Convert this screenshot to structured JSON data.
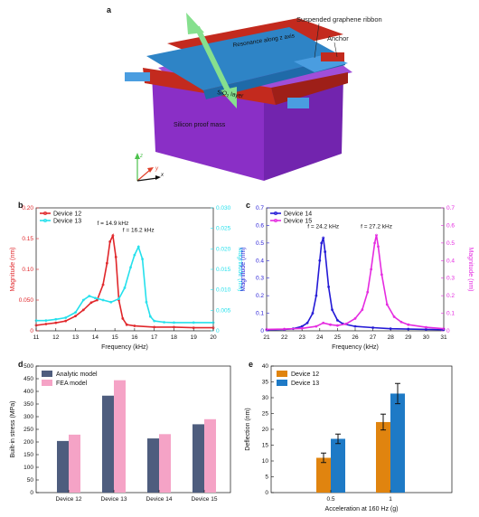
{
  "figure": {
    "panels": [
      "a",
      "b",
      "c",
      "d",
      "e"
    ]
  },
  "panel_a": {
    "labels": {
      "ribbon": "Suspended graphene ribbon",
      "anchor": "Anchor",
      "resonance": "Resonance along z axis",
      "sio2": "SiO",
      "sio2_sub": "2",
      "sio2_suffix": " layer",
      "mass": "Silicon proof mass"
    },
    "axes": {
      "z": "z",
      "y": "y",
      "x": "x"
    },
    "colors": {
      "red": "#c8201b",
      "blue": "#2e84c6",
      "purple": "#8b2fc9",
      "green": "#86e08e"
    }
  },
  "chart_data": [
    {
      "panel": "b",
      "type": "line",
      "xlabel": "Frequency (kHz)",
      "ylabel": "Magnitude (nm)",
      "y2label": "Magnitude (nm)",
      "xlim": [
        11,
        20
      ],
      "ylim": [
        0,
        0.2
      ],
      "y2lim": [
        0,
        0.03
      ],
      "xticks": [
        "11",
        "12",
        "13",
        "14",
        "15",
        "16",
        "17",
        "18",
        "19",
        "20"
      ],
      "yticks": [
        "0",
        "0.050",
        "0.10",
        "0.15",
        "0.20"
      ],
      "y2ticks": [
        "0",
        "0.005",
        "0.010",
        "0.015",
        "0.020",
        "0.025",
        "0.030"
      ],
      "annotations": [
        {
          "text": "f = 14.9 kHz",
          "x": 14.9,
          "y": 0.172
        },
        {
          "text": "f = 16.2 kHz",
          "x": 16.2,
          "y": 0.161
        }
      ],
      "series": [
        {
          "name": "Device 12",
          "color": "#e0262a",
          "axis": "left",
          "x": [
            11,
            11.5,
            12,
            12.5,
            13,
            13.4,
            13.8,
            14.1,
            14.4,
            14.6,
            14.75,
            14.9,
            15.05,
            15.2,
            15.4,
            15.6,
            16,
            17,
            18,
            19,
            20
          ],
          "y": [
            0.009,
            0.011,
            0.013,
            0.016,
            0.024,
            0.034,
            0.046,
            0.05,
            0.075,
            0.11,
            0.145,
            0.155,
            0.12,
            0.05,
            0.02,
            0.01,
            0.008,
            0.006,
            0.006,
            0.005,
            0.005
          ]
        },
        {
          "name": "Device 13",
          "color": "#25e0ec",
          "axis": "right",
          "x": [
            11,
            11.5,
            12,
            12.5,
            13,
            13.4,
            13.7,
            14,
            14.4,
            14.8,
            15.2,
            15.5,
            15.8,
            16,
            16.2,
            16.4,
            16.6,
            16.8,
            17,
            17.5,
            18,
            19,
            20
          ],
          "y": [
            0.0025,
            0.0025,
            0.0028,
            0.0032,
            0.0045,
            0.0075,
            0.0085,
            0.008,
            0.0075,
            0.007,
            0.0078,
            0.0105,
            0.0155,
            0.0185,
            0.0205,
            0.0175,
            0.007,
            0.0035,
            0.0024,
            0.0021,
            0.002,
            0.002,
            0.002
          ]
        }
      ]
    },
    {
      "panel": "c",
      "type": "line",
      "xlabel": "Frequency (kHz)",
      "ylabel": "Magnitude (nm)",
      "y2label": "Magnitude (nm)",
      "xlim": [
        21,
        31
      ],
      "ylim": [
        0,
        0.7
      ],
      "y2lim": [
        0,
        0.7
      ],
      "xticks": [
        "21",
        "22",
        "23",
        "24",
        "25",
        "26",
        "27",
        "28",
        "29",
        "30",
        "31"
      ],
      "yticks": [
        "0",
        "0.1",
        "0.2",
        "0.3",
        "0.4",
        "0.5",
        "0.6",
        "0.7"
      ],
      "y2ticks": [
        "0",
        "0.1",
        "0.2",
        "0.3",
        "0.4",
        "0.5",
        "0.6",
        "0.7"
      ],
      "annotations": [
        {
          "text": "f = 24.2 kHz",
          "x": 24.2,
          "y": 0.585
        },
        {
          "text": "f = 27.2 kHz",
          "x": 27.2,
          "y": 0.585
        }
      ],
      "series": [
        {
          "name": "Device 14",
          "color": "#2319d6",
          "axis": "left",
          "x": [
            21,
            22,
            22.5,
            23,
            23.3,
            23.6,
            23.8,
            24,
            24.1,
            24.2,
            24.3,
            24.5,
            24.7,
            25,
            25.3,
            26,
            27,
            28,
            29,
            30,
            31
          ],
          "y": [
            0.005,
            0.008,
            0.012,
            0.025,
            0.045,
            0.1,
            0.2,
            0.4,
            0.5,
            0.53,
            0.45,
            0.25,
            0.12,
            0.06,
            0.04,
            0.025,
            0.018,
            0.012,
            0.01,
            0.008,
            0.006
          ]
        },
        {
          "name": "Device 15",
          "color": "#e52be0",
          "axis": "right",
          "x": [
            21,
            22,
            23,
            23.8,
            24.2,
            24.6,
            25,
            25.5,
            26,
            26.4,
            26.7,
            26.9,
            27.1,
            27.2,
            27.3,
            27.5,
            27.8,
            28.2,
            28.6,
            29,
            30,
            31
          ],
          "y": [
            0.008,
            0.01,
            0.014,
            0.025,
            0.045,
            0.035,
            0.03,
            0.04,
            0.07,
            0.12,
            0.22,
            0.35,
            0.5,
            0.545,
            0.48,
            0.32,
            0.15,
            0.08,
            0.05,
            0.035,
            0.02,
            0.012
          ]
        }
      ]
    },
    {
      "panel": "d",
      "type": "bar",
      "ylabel": "Built-in stress (MPa)",
      "ylim": [
        0,
        500
      ],
      "yticks": [
        "0",
        "50",
        "100",
        "150",
        "200",
        "250",
        "300",
        "350",
        "400",
        "450",
        "500"
      ],
      "categories": [
        "Device 12",
        "Device 13",
        "Device 14",
        "Device 15"
      ],
      "series": [
        {
          "name": "Analytic model",
          "color": "#4e5d7e",
          "values": [
            204,
            383,
            214,
            270
          ]
        },
        {
          "name": "FEA model",
          "color": "#f5a3c6",
          "values": [
            229,
            444,
            231,
            290
          ]
        }
      ]
    },
    {
      "panel": "e",
      "type": "bar",
      "xlabel": "Acceleration at 160 Hz (g)",
      "ylabel": "Deflection (nm)",
      "ylim": [
        0,
        40
      ],
      "yticks": [
        "0",
        "5",
        "10",
        "15",
        "20",
        "25",
        "30",
        "35",
        "40"
      ],
      "categories": [
        "0.5",
        "1"
      ],
      "series": [
        {
          "name": "Device 12",
          "color": "#e0840f",
          "values": [
            11,
            22.3
          ],
          "errors": [
            1.5,
            2.5
          ]
        },
        {
          "name": "Device 13",
          "color": "#1e7ac6",
          "values": [
            17,
            31.3
          ],
          "errors": [
            1.5,
            3.2
          ]
        }
      ]
    }
  ]
}
